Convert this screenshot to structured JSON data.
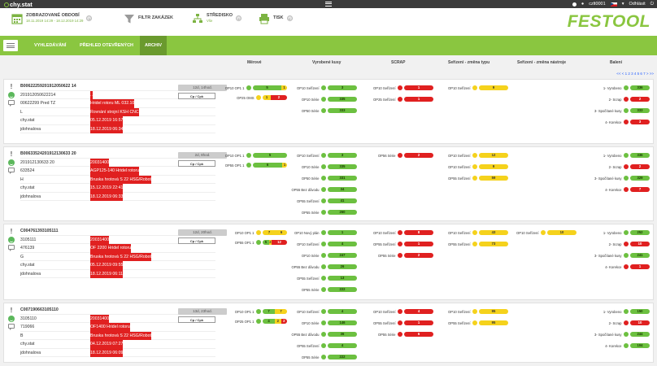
{
  "topbar": {
    "app_name": "chy.stat",
    "user": "czlt0001",
    "logout": "Odhlásit",
    "colors": {
      "bar": "#3a3a3a",
      "accent": "#8ac640"
    }
  },
  "toolbar": {
    "period_label": "ZOBRAZOVANÉ OBDOBÍ",
    "period_value": "18.11.2019 14:29 - 18.12.2019 14:29",
    "filter_label": "FILTR ZAKÁZEK",
    "center_label": "STŘEDISKO",
    "center_value": "Vše",
    "print_label": "TISK",
    "brand": "FESTOOL"
  },
  "nav": {
    "tabs": [
      "VYHLEDÁVÁNÍ",
      "PŘEHLED OTEVŘENÝCH",
      "ARCHIV"
    ],
    "active": 2
  },
  "columns": [
    "Měrové",
    "Vyrobené kusy",
    "SCRAP",
    "Seřízení - změna typu",
    "Seřízení - změna nástroje",
    "Balení"
  ],
  "pager": "<< < 1 2 3 4 5 6 7 > >>",
  "orders": [
    {
      "id": "B00622259201912050622 14",
      "code": "B006222592019120506221 4",
      "lines": [
        [
          "201912050622214",
          ".."
        ],
        [
          "00622299 Pred TZ",
          "Hridel rotoru ML 032.10"
        ],
        [
          "L",
          "Rovnání strojní KSH CNC"
        ],
        [
          "chy.stat",
          "05.12.2019 16:57"
        ],
        [
          "jdohnalova",
          "18.12.2019 06:34"
        ]
      ],
      "badge": "12d, 14hod.",
      "button": "Cp / Cpk"
    },
    {
      "code": "B006335242019121306332 0",
      "lines": [
        [
          "201912130633 20",
          "20031400"
        ],
        [
          "633524",
          "AGP125-140 Hridel rotoru"
        ],
        [
          "H",
          "Bruska hrotová S 22 HSG/Robot"
        ],
        [
          "chy.stat",
          "15.12.2019 22:41"
        ],
        [
          "jdohnalova",
          "18.12.2019 06:33"
        ]
      ],
      "badge": "2d, 8hod.",
      "button": "Cp / Cpk"
    },
    {
      "code": "C00476139310511 1",
      "lines": [
        [
          "3105111",
          "20031400"
        ],
        [
          "476139",
          "OF 2200 Hridel rotoru"
        ],
        [
          "G",
          "Bruska hrotová S 22 HSG/Robot"
        ],
        [
          "chy.stat",
          "05.12.2019 09:55"
        ],
        [
          "jdohnalova",
          "18.12.2019 06:11"
        ]
      ],
      "badge": "12d, 20hod.",
      "button": "Cp / Cpk"
    },
    {
      "code": "C007190663105110",
      "lines": [
        [
          "3105110",
          "20031400"
        ],
        [
          "719066",
          "OF1400 Hridel rotoru"
        ],
        [
          "B",
          "Bruska hrotová S 22 HSG/Robot"
        ],
        [
          "chy.stat",
          "04.12.2019 07:27"
        ],
        [
          "jdohnalova",
          "18.12.2019 06:09"
        ]
      ],
      "badge": "13d, 23hod.",
      "button": "Cp / Cpk"
    }
  ],
  "codes": [
    "B00622259201912050622 14",
    "B00633524201912130633 20",
    "C004761393105111",
    "C007190663105110"
  ],
  "measure": [
    [
      {
        "label": "OP10 OP1 1",
        "segs": [
          [
            "g",
            "5"
          ],
          [
            "y",
            "1"
          ]
        ],
        "w": 42,
        "dot": "g"
      },
      {
        "label": "OP25 OMS",
        "segs": [
          [
            "y",
            "1"
          ],
          [
            "r",
            "2"
          ]
        ],
        "w": 30,
        "dot": "y"
      }
    ],
    [
      {
        "label": "OP10 OP1 1",
        "segs": [
          [
            "g",
            "5"
          ]
        ],
        "w": 42,
        "dot": "g"
      },
      {
        "label": "OP55 OP1 1",
        "segs": [
          [
            "g",
            "6"
          ],
          [
            "y",
            "1"
          ]
        ],
        "w": 42,
        "dot": "g"
      }
    ],
    [
      {
        "label": "OP10 OP1 1",
        "segs": [
          [
            "y",
            "7"
          ],
          [
            "y",
            "6"
          ]
        ],
        "w": 30,
        "dot": "y"
      },
      {
        "label": "OP55 OP1 1",
        "segs": [
          [
            "g",
            "5"
          ],
          [
            "y",
            "2"
          ],
          [
            "r",
            "12"
          ]
        ],
        "w": 30,
        "dot": "g"
      }
    ],
    [
      {
        "label": "OP10 OP1 1",
        "segs": [
          [
            "g",
            "7"
          ],
          [
            "y",
            "7"
          ]
        ],
        "w": 30,
        "dot": "g"
      },
      {
        "label": "OP25 OP1 1",
        "segs": [
          [
            "g",
            "4"
          ],
          [
            "y",
            "2"
          ],
          [
            "r",
            "2"
          ]
        ],
        "w": 30,
        "dot": "g"
      }
    ]
  ],
  "made": [
    [
      [
        "OP10 Seřízení",
        "3",
        "g"
      ],
      [
        "OP10 Série",
        "335",
        "g"
      ],
      [
        "OP50 Série",
        "333",
        "g"
      ]
    ],
    [
      [
        "OP10 Seřízení",
        "3",
        "g"
      ],
      [
        "OP10 Série",
        "335",
        "g"
      ],
      [
        "OP50 Série",
        "331",
        "g"
      ],
      [
        "OP55 Bez důvodu",
        "34",
        "g"
      ],
      [
        "OP55 Seřízení",
        "41",
        "g"
      ],
      [
        "OP55 Série",
        "260",
        "g"
      ]
    ],
    [
      [
        "OP10 Nový plán",
        "1",
        "g"
      ],
      [
        "OP10 Seřízení",
        "4",
        "g"
      ],
      [
        "OP10 Série",
        "247",
        "g"
      ],
      [
        "OP55 Bez důvodu",
        "26",
        "g"
      ],
      [
        "OP55 Seřízení",
        "13",
        "g"
      ],
      [
        "OP55 Série",
        "222",
        "g"
      ]
    ],
    [
      [
        "OP10 Seřízení",
        "4",
        "g"
      ],
      [
        "OP10 Série",
        "146",
        "g"
      ],
      [
        "OP55 Bez důvodu",
        "36",
        "g"
      ],
      [
        "OP55 Seřízení",
        "4",
        "g"
      ],
      [
        "OP55 Série",
        "222",
        "g"
      ]
    ]
  ],
  "scrap": [
    [
      [
        "OP10 Seřízení",
        "1",
        "r"
      ],
      [
        "OP25 Seřízení",
        "1",
        "r"
      ]
    ],
    [
      [
        "OP56 Série",
        "2",
        "r"
      ]
    ],
    [
      [
        "OP10 Seřízení",
        "8",
        "r"
      ],
      [
        "OP55 Seřízení",
        "1",
        "r"
      ],
      [
        "OP55 Série",
        "2",
        "r"
      ]
    ],
    [
      [
        "OP10 Seřízení",
        "4",
        "r"
      ],
      [
        "OP55 Seřízení",
        "1",
        "r"
      ],
      [
        "OP55 Série",
        "6",
        "r"
      ]
    ]
  ],
  "type_change": [
    [
      [
        "OP10 Seřízení",
        "9",
        "y"
      ]
    ],
    [
      [
        "OP10 Seřízení",
        "12",
        "y"
      ],
      [
        "OP10 Seřízení",
        "9",
        "y"
      ],
      [
        "OP55 Seřízení",
        "59",
        "y"
      ]
    ],
    [
      [
        "OP10 Seřízení",
        "43",
        "y"
      ],
      [
        "OP55 Seřízení",
        "73",
        "y"
      ]
    ],
    [
      [
        "OP10 Seřízení",
        "95",
        "y"
      ],
      [
        "OP55 Seřízení",
        "95",
        "y"
      ]
    ]
  ],
  "tool_change": [
    [],
    [],
    [
      [
        "OP10 Seřízení",
        "10",
        "y"
      ]
    ],
    []
  ],
  "packing": [
    [
      [
        "1- Vyrobeno",
        "336",
        "g"
      ],
      [
        "2- Scrap",
        "2",
        "r"
      ],
      [
        "3- Spočítané kusy",
        "333",
        "g"
      ],
      [
        "4- Korekce",
        "3",
        "r"
      ]
    ],
    [
      [
        "1- Vyrobeno",
        "336",
        "g"
      ],
      [
        "2- Scrap",
        "2",
        "r"
      ],
      [
        "3- Spočítané kusy",
        "329",
        "g"
      ],
      [
        "4- Korekce",
        "7",
        "r"
      ]
    ],
    [
      [
        "1- Vyrobeno",
        "252",
        "g"
      ],
      [
        "2- Scrap",
        "10",
        "r"
      ],
      [
        "3- Spočítané kusy",
        "241",
        "g"
      ],
      [
        "4- Korekce",
        "1",
        "r"
      ]
    ],
    [
      [
        "1- Vyrobeno",
        "150",
        "g"
      ],
      [
        "2- Scrap",
        "10",
        "r"
      ],
      [
        "3- Spočítané kusy",
        "244",
        "g"
      ],
      [
        "4- Korekce",
        "104",
        "g"
      ]
    ]
  ]
}
